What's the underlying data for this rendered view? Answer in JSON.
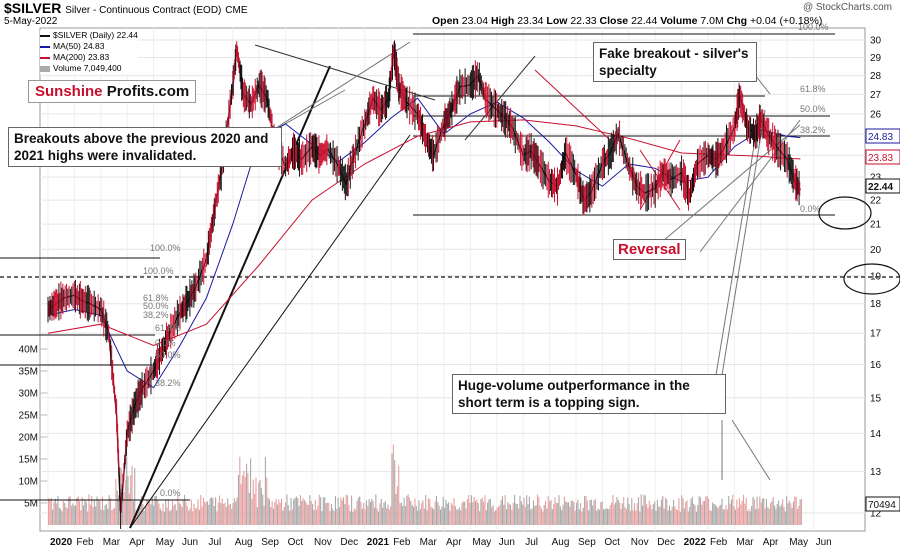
{
  "header": {
    "ticker": "$SILVER",
    "subtitle": "Silver - Continuous Contract (EOD)",
    "exchange": "CME",
    "date": "5-May-2022",
    "open_label": "Open",
    "open": "23.04",
    "high_label": "High",
    "high": "23.34",
    "low_label": "Low",
    "low": "22.33",
    "close_label": "Close",
    "close": "22.44",
    "volume_label": "Volume",
    "volume": "7.0M",
    "chg_label": "Chg",
    "chg": "+0.04 (+0.18%)",
    "watermark": "@ StockCharts.com"
  },
  "legend": {
    "price": "$SILVER (Daily) 22.44",
    "ma50": "MA(50) 24.83",
    "ma200": "MA(200) 23.83",
    "volume": "Volume 7,049,400"
  },
  "logo": {
    "part1": "Sunshine",
    "part2": "Profits.com"
  },
  "callouts": {
    "breakouts": "Breakouts above the previous 2020 and 2021 highs were invalidated.",
    "fake_breakout": "Fake breakout - silver's specialty",
    "reversal": "Reversal",
    "huge_volume": "Huge-volume outperformance in the short term is a topping sign."
  },
  "colors": {
    "up": "#111111",
    "down": "#c8102e",
    "ma50": "#1a1aa0",
    "ma200": "#c8102e",
    "volume_up": "#a9a9a9",
    "volume_down": "#e8a0a0",
    "badge_close": "#111111",
    "badge_ma50": "#1a1aa0",
    "badge_ma200": "#c8102e",
    "badge_vol": "#111111"
  },
  "price_badges": {
    "ma50": "24.83",
    "ma200": "23.83",
    "close": "22.44",
    "volume": "70494"
  },
  "chart_data": {
    "type": "line",
    "title": "$SILVER Silver - Continuous Contract (EOD)",
    "y_ticks": [
      12,
      13,
      14,
      15,
      16,
      17,
      18,
      19,
      20,
      21,
      22,
      23,
      24,
      25,
      26,
      27,
      28,
      29,
      30
    ],
    "y_range": [
      12,
      30.5
    ],
    "y_scale": "log",
    "volume_ticks": [
      "5M",
      "10M",
      "15M",
      "20M",
      "25M",
      "30M",
      "35M",
      "40M"
    ],
    "volume_range_millions": [
      0,
      42
    ],
    "x_ticks": [
      "2020",
      "Feb",
      "Mar",
      "Apr",
      "May",
      "Jun",
      "Jul",
      "Aug",
      "Sep",
      "Oct",
      "Nov",
      "Dec",
      "2021",
      "Feb",
      "Mar",
      "Apr",
      "May",
      "Jun",
      "Jul",
      "Aug",
      "Sep",
      "Oct",
      "Nov",
      "Dec",
      "2022",
      "Feb",
      "Mar",
      "Apr",
      "May",
      "Jun"
    ],
    "x_bold": [
      "2020",
      "2021",
      "2022"
    ],
    "series": [
      {
        "name": "$SILVER (Daily)",
        "points": [
          [
            0,
            17.8
          ],
          [
            0.3,
            18.0
          ],
          [
            0.6,
            18.2
          ],
          [
            1,
            18.3
          ],
          [
            1.3,
            18.1
          ],
          [
            1.6,
            18.0
          ],
          [
            2,
            17.8
          ],
          [
            2.3,
            17.0
          ],
          [
            2.6,
            14.5
          ],
          [
            2.75,
            12.0
          ],
          [
            3,
            14.0
          ],
          [
            3.3,
            14.8
          ],
          [
            3.6,
            15.3
          ],
          [
            4,
            15.8
          ],
          [
            4.3,
            16.4
          ],
          [
            4.6,
            17.0
          ],
          [
            5,
            17.7
          ],
          [
            5.3,
            18.1
          ],
          [
            5.6,
            18.6
          ],
          [
            6,
            19.6
          ],
          [
            6.3,
            21.5
          ],
          [
            6.6,
            23.5
          ],
          [
            7,
            27.5
          ],
          [
            7.15,
            29.5
          ],
          [
            7.4,
            27.0
          ],
          [
            7.7,
            26.5
          ],
          [
            8,
            27.5
          ],
          [
            8.3,
            26.8
          ],
          [
            8.6,
            24.5
          ],
          [
            9,
            23.5
          ],
          [
            9.3,
            24.2
          ],
          [
            9.6,
            23.8
          ],
          [
            10,
            24.4
          ],
          [
            10.3,
            24.0
          ],
          [
            10.6,
            24.3
          ],
          [
            11,
            23.5
          ],
          [
            11.3,
            22.7
          ],
          [
            11.6,
            24.0
          ],
          [
            12,
            25.5
          ],
          [
            12.3,
            26.8
          ],
          [
            12.6,
            26.2
          ],
          [
            12.9,
            26.8
          ],
          [
            13.1,
            29.4
          ],
          [
            13.3,
            27.3
          ],
          [
            13.6,
            26.6
          ],
          [
            14,
            26.0
          ],
          [
            14.3,
            24.8
          ],
          [
            14.6,
            24.0
          ],
          [
            15,
            25.5
          ],
          [
            15.3,
            26.3
          ],
          [
            15.6,
            27.4
          ],
          [
            16,
            27.5
          ],
          [
            16.3,
            28.0
          ],
          [
            16.6,
            26.7
          ],
          [
            17,
            26.2
          ],
          [
            17.3,
            25.8
          ],
          [
            17.6,
            25.3
          ],
          [
            18,
            24.0
          ],
          [
            18.3,
            24.2
          ],
          [
            18.6,
            23.6
          ],
          [
            19,
            22.8
          ],
          [
            19.3,
            22.6
          ],
          [
            19.6,
            24.1
          ],
          [
            20,
            23.1
          ],
          [
            20.3,
            22.0
          ],
          [
            20.6,
            22.4
          ],
          [
            21,
            23.6
          ],
          [
            21.3,
            24.1
          ],
          [
            21.6,
            25.0
          ],
          [
            22,
            23.5
          ],
          [
            22.3,
            22.6
          ],
          [
            22.6,
            22.3
          ],
          [
            23,
            22.5
          ],
          [
            23.3,
            23.2
          ],
          [
            23.6,
            22.9
          ],
          [
            24,
            23.2
          ],
          [
            24.3,
            22.2
          ],
          [
            24.6,
            23.6
          ],
          [
            25,
            24.0
          ],
          [
            25.3,
            23.8
          ],
          [
            25.6,
            24.3
          ],
          [
            26,
            25.3
          ],
          [
            26.2,
            26.9
          ],
          [
            26.5,
            25.3
          ],
          [
            26.8,
            25.0
          ],
          [
            27,
            25.7
          ],
          [
            27.3,
            24.9
          ],
          [
            27.6,
            24.4
          ],
          [
            28,
            23.8
          ],
          [
            28.3,
            22.8
          ],
          [
            28.5,
            22.44
          ]
        ]
      },
      {
        "name": "MA(50)",
        "points": [
          [
            0,
            17.6
          ],
          [
            1,
            17.8
          ],
          [
            2,
            17.6
          ],
          [
            3,
            15.8
          ],
          [
            4,
            15.3
          ],
          [
            5,
            16.6
          ],
          [
            6,
            18.2
          ],
          [
            7,
            21.0
          ],
          [
            8,
            24.8
          ],
          [
            9,
            25.5
          ],
          [
            10,
            24.5
          ],
          [
            11,
            23.7
          ],
          [
            12,
            24.6
          ],
          [
            13,
            25.8
          ],
          [
            14,
            26.8
          ],
          [
            15,
            25.0
          ],
          [
            16,
            26.0
          ],
          [
            17,
            26.6
          ],
          [
            18,
            25.8
          ],
          [
            19,
            24.6
          ],
          [
            20,
            23.3
          ],
          [
            21,
            22.6
          ],
          [
            22,
            23.6
          ],
          [
            23,
            23.4
          ],
          [
            24,
            22.8
          ],
          [
            25,
            23.0
          ],
          [
            26,
            24.4
          ],
          [
            27,
            25.2
          ],
          [
            28,
            24.9
          ],
          [
            28.5,
            24.83
          ]
        ]
      },
      {
        "name": "MA(200)",
        "points": [
          [
            0,
            17.0
          ],
          [
            2,
            17.3
          ],
          [
            4,
            16.6
          ],
          [
            6,
            17.3
          ],
          [
            8,
            19.4
          ],
          [
            10,
            22.0
          ],
          [
            12,
            23.6
          ],
          [
            14,
            24.9
          ],
          [
            16,
            25.6
          ],
          [
            18,
            25.7
          ],
          [
            20,
            25.4
          ],
          [
            22,
            24.8
          ],
          [
            24,
            24.1
          ],
          [
            26,
            24.0
          ],
          [
            27,
            23.95
          ],
          [
            28,
            23.85
          ],
          [
            28.5,
            23.83
          ]
        ]
      }
    ],
    "annotations": {
      "fib_labels": [
        "100.0%",
        "100.0%",
        "61.8%",
        "50.0%",
        "38.2%",
        "61.8%",
        "0.0%",
        "50.0%",
        "38.2%",
        "0.0%",
        "100.0%",
        "61.8%",
        "50.0%",
        "38.2%",
        "0.0%"
      ]
    }
  }
}
